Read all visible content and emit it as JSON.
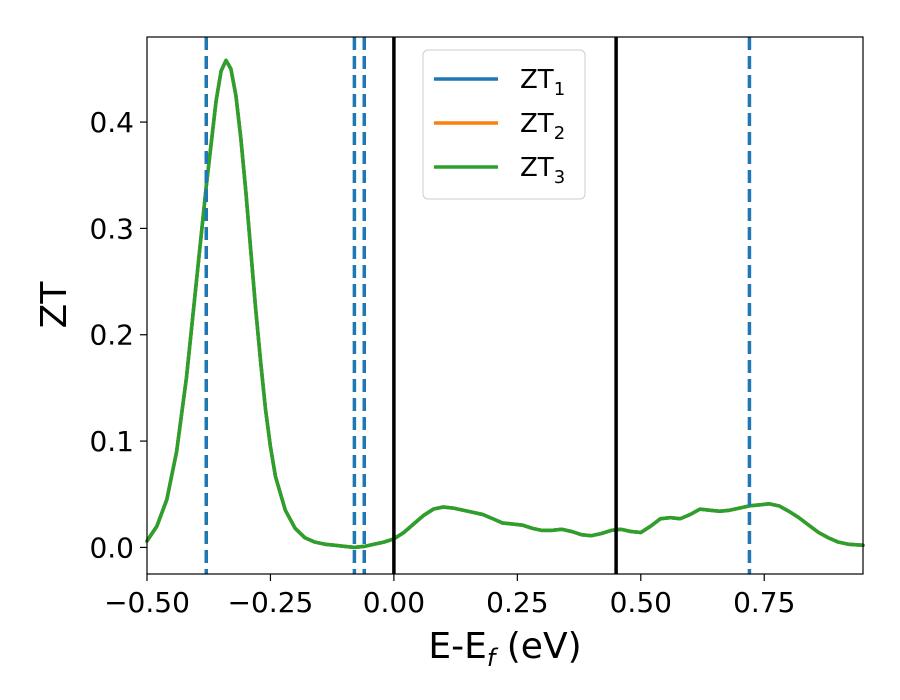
{
  "chart_data": {
    "type": "line",
    "xlabel_main": "E-E",
    "xlabel_sub": "f",
    "xlabel_unit": " (eV)",
    "ylabel": "ZT",
    "xlim": [
      -0.5,
      0.95
    ],
    "ylim": [
      -0.025,
      0.48
    ],
    "xticks": [
      -0.5,
      -0.25,
      0.0,
      0.25,
      0.5,
      0.75
    ],
    "xtick_labels": [
      "−0.50",
      "−0.25",
      "0.00",
      "0.25",
      "0.50",
      "0.75"
    ],
    "yticks": [
      0.0,
      0.1,
      0.2,
      0.3,
      0.4
    ],
    "ytick_labels": [
      "0.0",
      "0.1",
      "0.2",
      "0.3",
      "0.4"
    ],
    "legend_position": "top-center",
    "series": [
      {
        "label_main": "ZT",
        "label_sub": "1",
        "color": "#1f77b4"
      },
      {
        "label_main": "ZT",
        "label_sub": "2",
        "color": "#ff7f0e"
      },
      {
        "label_main": "ZT",
        "label_sub": "3",
        "color": "#2ca02c"
      }
    ],
    "x": [
      -0.5,
      -0.48,
      -0.46,
      -0.44,
      -0.42,
      -0.4,
      -0.38,
      -0.36,
      -0.35,
      -0.34,
      -0.33,
      -0.32,
      -0.31,
      -0.3,
      -0.29,
      -0.28,
      -0.27,
      -0.26,
      -0.25,
      -0.24,
      -0.22,
      -0.2,
      -0.18,
      -0.16,
      -0.14,
      -0.12,
      -0.1,
      -0.08,
      -0.06,
      -0.04,
      -0.02,
      0.0,
      0.02,
      0.04,
      0.06,
      0.08,
      0.1,
      0.12,
      0.14,
      0.16,
      0.18,
      0.2,
      0.22,
      0.24,
      0.26,
      0.28,
      0.3,
      0.32,
      0.34,
      0.36,
      0.38,
      0.4,
      0.42,
      0.44,
      0.46,
      0.48,
      0.5,
      0.52,
      0.54,
      0.56,
      0.58,
      0.6,
      0.62,
      0.64,
      0.66,
      0.68,
      0.7,
      0.72,
      0.74,
      0.76,
      0.78,
      0.8,
      0.82,
      0.84,
      0.86,
      0.88,
      0.9,
      0.92,
      0.95
    ],
    "y": [
      0.006,
      0.02,
      0.045,
      0.09,
      0.16,
      0.25,
      0.34,
      0.42,
      0.448,
      0.458,
      0.45,
      0.425,
      0.385,
      0.335,
      0.28,
      0.225,
      0.175,
      0.13,
      0.095,
      0.067,
      0.035,
      0.018,
      0.009,
      0.005,
      0.003,
      0.002,
      0.001,
      0.0,
      0.001,
      0.003,
      0.005,
      0.008,
      0.014,
      0.022,
      0.03,
      0.036,
      0.038,
      0.037,
      0.035,
      0.033,
      0.031,
      0.027,
      0.023,
      0.022,
      0.021,
      0.018,
      0.016,
      0.016,
      0.017,
      0.015,
      0.012,
      0.011,
      0.013,
      0.016,
      0.017,
      0.015,
      0.014,
      0.02,
      0.027,
      0.028,
      0.027,
      0.031,
      0.036,
      0.035,
      0.034,
      0.035,
      0.037,
      0.039,
      0.04,
      0.041,
      0.039,
      0.034,
      0.028,
      0.021,
      0.014,
      0.009,
      0.005,
      0.003,
      0.002
    ],
    "vlines_dashed": {
      "color": "#1f77b4",
      "x": [
        -0.38,
        -0.08,
        -0.06,
        0.72
      ]
    },
    "vlines_solid": {
      "color": "#000000",
      "x": [
        0.0,
        0.45
      ]
    }
  }
}
